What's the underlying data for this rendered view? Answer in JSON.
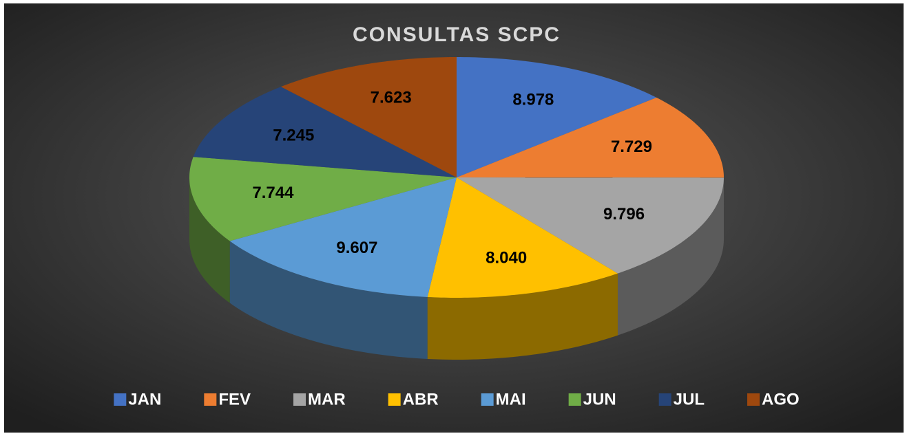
{
  "chart_data": {
    "type": "pie",
    "title": "CONSULTAS SCPC",
    "categories": [
      "JAN",
      "FEV",
      "MAR",
      "ABR",
      "MAI",
      "JUN",
      "JUL",
      "AGO"
    ],
    "values": [
      8978,
      7729,
      9796,
      8040,
      9607,
      7744,
      7245,
      7623
    ],
    "value_labels": [
      "8.978",
      "7.729",
      "9.796",
      "8.040",
      "9.607",
      "7.744",
      "7.245",
      "7.623"
    ],
    "colors": [
      "#4472c4",
      "#ed7d31",
      "#a5a5a5",
      "#ffc000",
      "#5b9bd5",
      "#70ad47",
      "#264478",
      "#9e480e"
    ],
    "legend": "bottom"
  }
}
